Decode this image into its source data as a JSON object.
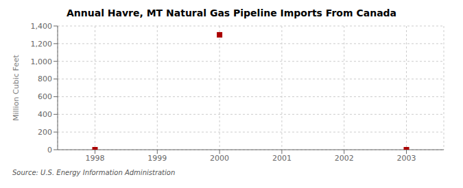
{
  "chart_data": {
    "type": "scatter",
    "title": "Annual Havre, MT Natural Gas Pipeline Imports From Canada",
    "ylabel": "Million Cubic Feet",
    "source": "Source: U.S. Energy Information Administration",
    "x": [
      1998,
      2000,
      2003
    ],
    "values": [
      0,
      1300,
      0
    ],
    "color": "#AA0000",
    "marker": "square",
    "xlim": [
      1997.4,
      2003.6
    ],
    "ylim": [
      0,
      1400
    ],
    "xticks": [
      1998,
      1999,
      2000,
      2001,
      2002,
      2003
    ],
    "yticks": [
      0,
      200,
      400,
      600,
      800,
      {
        "value": 1000,
        "label": "1,000"
      },
      {
        "value": 1200,
        "label": "1,200"
      },
      {
        "value": 1400,
        "label": "1,400"
      }
    ],
    "grid": true
  }
}
